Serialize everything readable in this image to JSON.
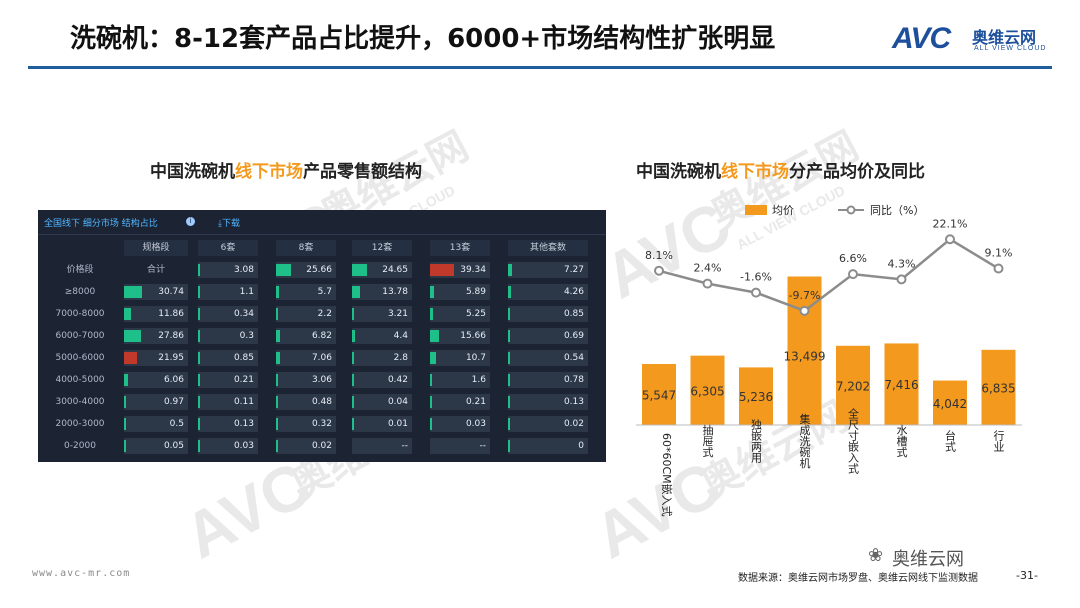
{
  "header": {
    "title": "洗碗机：8-12套产品占比提升，6000+市场结构性扩张明显",
    "logo_avc": "AVC",
    "logo_cn": "奥维云网",
    "logo_en": "ALL VIEW CLOUD"
  },
  "left": {
    "title_pre": "中国洗碗机",
    "title_hl": "线下市场",
    "title_post": "产品零售额结构",
    "panel_path": "全国线下 细分市场 结构占比",
    "panel_info": "i",
    "panel_download": "⤓下载",
    "columns": [
      "规格段",
      "6套",
      "8套",
      "12套",
      "13套",
      "其他套数"
    ],
    "row_header": "价格段",
    "rows": [
      {
        "label": "合计",
        "values": [
          "",
          "3.08",
          "25.66",
          "24.65",
          "39.34",
          "7.27"
        ]
      },
      {
        "label": "≥8000",
        "values": [
          "30.74",
          "1.1",
          "5.7",
          "13.78",
          "5.89",
          "4.26"
        ]
      },
      {
        "label": "7000-8000",
        "values": [
          "11.86",
          "0.34",
          "2.2",
          "3.21",
          "5.25",
          "0.85"
        ]
      },
      {
        "label": "6000-7000",
        "values": [
          "27.86",
          "0.3",
          "6.82",
          "4.4",
          "15.66",
          "0.69"
        ]
      },
      {
        "label": "5000-6000",
        "values": [
          "21.95",
          "0.85",
          "7.06",
          "2.8",
          "10.7",
          "0.54"
        ]
      },
      {
        "label": "4000-5000",
        "values": [
          "6.06",
          "0.21",
          "3.06",
          "0.42",
          "1.6",
          "0.78"
        ]
      },
      {
        "label": "3000-4000",
        "values": [
          "0.97",
          "0.11",
          "0.48",
          "0.04",
          "0.21",
          "0.13"
        ]
      },
      {
        "label": "2000-3000",
        "values": [
          "0.5",
          "0.13",
          "0.32",
          "0.01",
          "0.03",
          "0.02"
        ]
      },
      {
        "label": "0-2000",
        "values": [
          "0.05",
          "0.03",
          "0.02",
          "--",
          "--",
          "0"
        ]
      }
    ],
    "total_label": "合计",
    "bar_colors": {
      "green": "#1fbf8a",
      "red": "#c0392b"
    }
  },
  "right": {
    "title_pre": "中国洗碗机",
    "title_hl": "线下市场",
    "title_post": "分产品均价及同比"
  },
  "chart_data": {
    "type": "bar",
    "categories": [
      "60*60CM嵌入式",
      "抽屉式",
      "独嵌两用",
      "集成洗碗机",
      "全尺寸嵌入式",
      "水槽式",
      "台式",
      "行业"
    ],
    "series": [
      {
        "name": "均价",
        "type": "bar",
        "values": [
          5547,
          6305,
          5236,
          13499,
          7202,
          7416,
          4042,
          6835
        ],
        "labels": [
          "5,547",
          "6,305",
          "5,236",
          "13,499",
          "7,202",
          "7,416",
          "4,042",
          "6,835"
        ],
        "color": "#f39a1e"
      },
      {
        "name": "同比（%）",
        "type": "line",
        "values": [
          8.1,
          2.4,
          -1.6,
          -9.7,
          6.6,
          4.3,
          22.1,
          9.1
        ],
        "labels": [
          "8.1%",
          "2.4%",
          "-1.6%",
          "-9.7%",
          "6.6%",
          "4.3%",
          "22.1%",
          "9.1%"
        ],
        "color": "#8c8c8c"
      }
    ],
    "legend": "top",
    "grid": false
  },
  "footer": {
    "website": "www.avc-mr.com",
    "source": "数据来源：奥维云网市场罗盘、奥维云网线下监测数据",
    "page": "-31-",
    "wechat": "奥维云网",
    "wechat_icon": "❀"
  },
  "watermark": {
    "text_cn": "奥维云网",
    "text_en": "ALL VIEW CLOUD",
    "text_avc": "AVC"
  }
}
